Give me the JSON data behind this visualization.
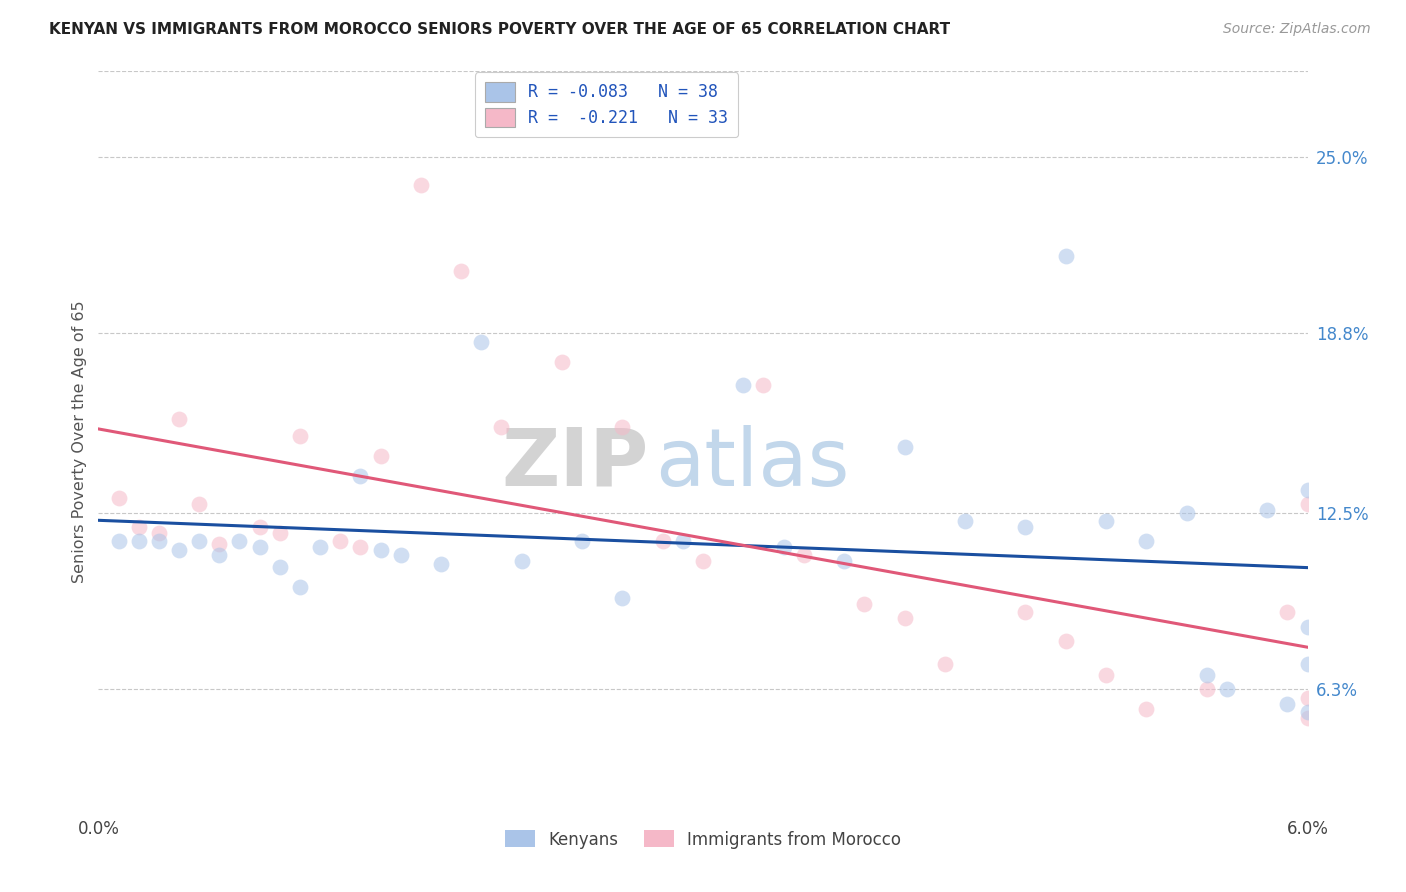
{
  "title": "KENYAN VS IMMIGRANTS FROM MOROCCO SENIORS POVERTY OVER THE AGE OF 65 CORRELATION CHART",
  "source": "Source: ZipAtlas.com",
  "ylabel": "Seniors Poverty Over the Age of 65",
  "ytick_vals": [
    0.063,
    0.125,
    0.188,
    0.25
  ],
  "ytick_labels": [
    "6.3%",
    "12.5%",
    "18.8%",
    "25.0%"
  ],
  "xlim": [
    0.0,
    0.06
  ],
  "ylim": [
    0.02,
    0.28
  ],
  "xtick_vals": [
    0.0,
    0.06
  ],
  "xtick_labels": [
    "0.0%",
    "6.0%"
  ],
  "legend_line1": "R = -0.083   N = 38",
  "legend_line2": "R =  -0.221   N = 33",
  "kenyan_color": "#aac4e8",
  "kenyan_line_color": "#1a4fa0",
  "morocco_color": "#f5b8c8",
  "morocco_line_color": "#e05878",
  "kenyan_x": [
    0.001,
    0.002,
    0.003,
    0.004,
    0.005,
    0.006,
    0.007,
    0.008,
    0.009,
    0.01,
    0.011,
    0.013,
    0.014,
    0.015,
    0.017,
    0.019,
    0.021,
    0.024,
    0.026,
    0.029,
    0.032,
    0.034,
    0.037,
    0.04,
    0.043,
    0.046,
    0.048,
    0.05,
    0.052,
    0.054,
    0.055,
    0.056,
    0.058,
    0.059,
    0.06,
    0.06,
    0.06,
    0.06
  ],
  "kenyan_y": [
    0.115,
    0.115,
    0.115,
    0.112,
    0.115,
    0.11,
    0.115,
    0.113,
    0.106,
    0.099,
    0.113,
    0.138,
    0.112,
    0.11,
    0.107,
    0.185,
    0.108,
    0.115,
    0.095,
    0.115,
    0.17,
    0.113,
    0.108,
    0.148,
    0.122,
    0.12,
    0.215,
    0.122,
    0.115,
    0.125,
    0.068,
    0.063,
    0.126,
    0.058,
    0.072,
    0.133,
    0.085,
    0.055
  ],
  "morocco_x": [
    0.001,
    0.002,
    0.003,
    0.004,
    0.005,
    0.006,
    0.008,
    0.009,
    0.01,
    0.012,
    0.013,
    0.014,
    0.016,
    0.018,
    0.02,
    0.023,
    0.026,
    0.028,
    0.03,
    0.033,
    0.035,
    0.038,
    0.04,
    0.042,
    0.046,
    0.048,
    0.05,
    0.052,
    0.055,
    0.059,
    0.06,
    0.06,
    0.06
  ],
  "morocco_y": [
    0.13,
    0.12,
    0.118,
    0.158,
    0.128,
    0.114,
    0.12,
    0.118,
    0.152,
    0.115,
    0.113,
    0.145,
    0.24,
    0.21,
    0.155,
    0.178,
    0.155,
    0.115,
    0.108,
    0.17,
    0.11,
    0.093,
    0.088,
    0.072,
    0.09,
    0.08,
    0.068,
    0.056,
    0.063,
    0.09,
    0.128,
    0.06,
    0.053
  ],
  "watermark_zip": "ZIP",
  "watermark_atlas": "atlas",
  "background_color": "#ffffff",
  "grid_color": "#c8c8c8",
  "marker_size": 130,
  "marker_alpha": 0.55,
  "line_width": 2.2
}
